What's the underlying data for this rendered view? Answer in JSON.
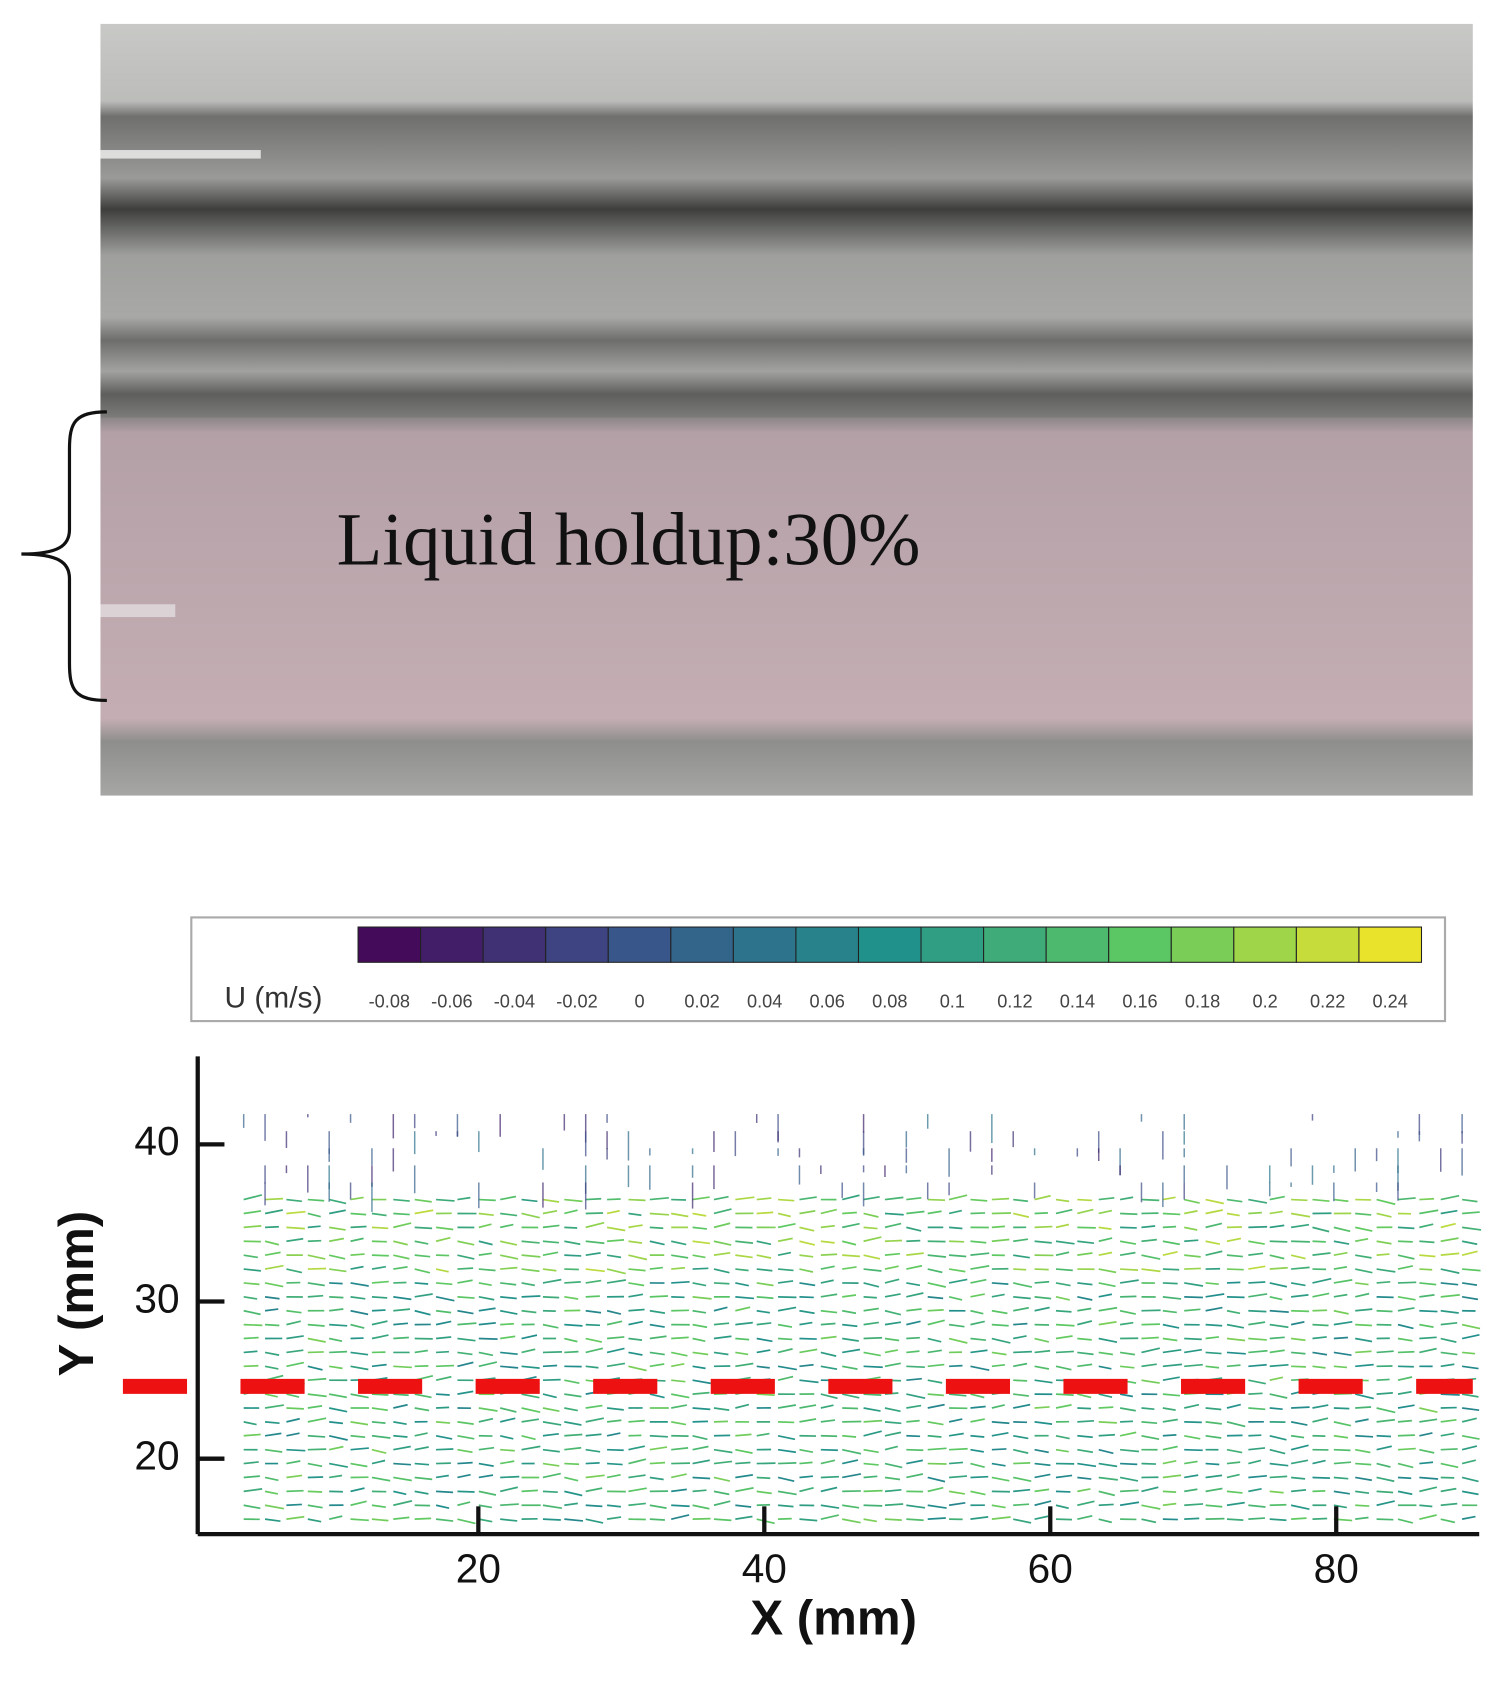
{
  "photo": {
    "annotation": "Liquid holdup:30%"
  },
  "colorbar": {
    "label": "U (m/s)",
    "clim": [
      -0.09,
      0.25
    ],
    "ticks": [
      {
        "value": -0.08,
        "label": "-0.08"
      },
      {
        "value": -0.06,
        "label": "-0.06"
      },
      {
        "value": -0.04,
        "label": "-0.04"
      },
      {
        "value": -0.02,
        "label": "-0.02"
      },
      0,
      {
        "value": 0.02,
        "label": "0.02"
      },
      {
        "value": 0.04,
        "label": "0.04"
      },
      {
        "value": 0.06,
        "label": "0.06"
      },
      {
        "value": 0.08,
        "label": "0.08"
      },
      {
        "value": 0.1,
        "label": "0.1"
      },
      {
        "value": 0.12,
        "label": "0.12"
      },
      {
        "value": 0.14,
        "label": "0.14"
      },
      {
        "value": 0.16,
        "label": "0.16"
      },
      {
        "value": 0.18,
        "label": "0.18"
      },
      {
        "value": 0.2,
        "label": "0.2"
      },
      {
        "value": 0.22,
        "label": "0.22"
      },
      {
        "value": 0.24,
        "label": "0.24"
      }
    ]
  },
  "chart_data": {
    "type": "vector",
    "xlabel": "X (mm)",
    "ylabel": "Y (mm)",
    "xlim": [
      0,
      90
    ],
    "ylim": [
      15.2,
      45.6
    ],
    "xticks": [
      20,
      40,
      60,
      80
    ],
    "yticks": [
      20,
      30,
      40
    ],
    "reference_line_y": 24.6,
    "reference_line_color": "#ee1111"
  }
}
